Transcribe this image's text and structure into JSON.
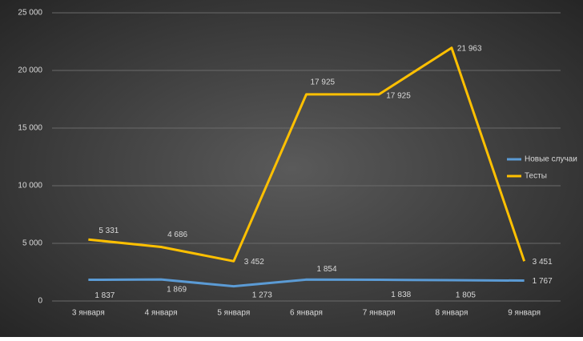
{
  "chart_data": {
    "type": "line",
    "categories": [
      "3 января",
      "4 января",
      "5 января",
      "6 января",
      "7 января",
      "8 января",
      "9 января"
    ],
    "series": [
      {
        "name": "Новые случаи",
        "color": "#5b9bd5",
        "values": [
          1837,
          1869,
          1273,
          1854,
          1838,
          1805,
          1767
        ],
        "value_labels": [
          "1 837",
          "1 869",
          "1 273",
          "1 854",
          "1 838",
          "1 805",
          "1 767"
        ]
      },
      {
        "name": "Тесты",
        "color": "#ffc000",
        "values": [
          5331,
          4686,
          3452,
          17925,
          17925,
          21963,
          3451
        ],
        "value_labels": [
          "5 331",
          "4 686",
          "3 452",
          "17 925",
          "17 925",
          "21 963",
          "3 451"
        ]
      }
    ],
    "ylim": [
      0,
      25000
    ],
    "yticks": [
      0,
      {
        "value": 5000,
        "label": "5 000"
      },
      {
        "value": 10000,
        "label": "10 000"
      },
      {
        "value": 15000,
        "label": "15 000"
      },
      {
        "value": 20000,
        "label": "20 000"
      },
      {
        "value": 25000,
        "label": "25 000"
      }
    ],
    "grid": true,
    "legend": "right"
  }
}
